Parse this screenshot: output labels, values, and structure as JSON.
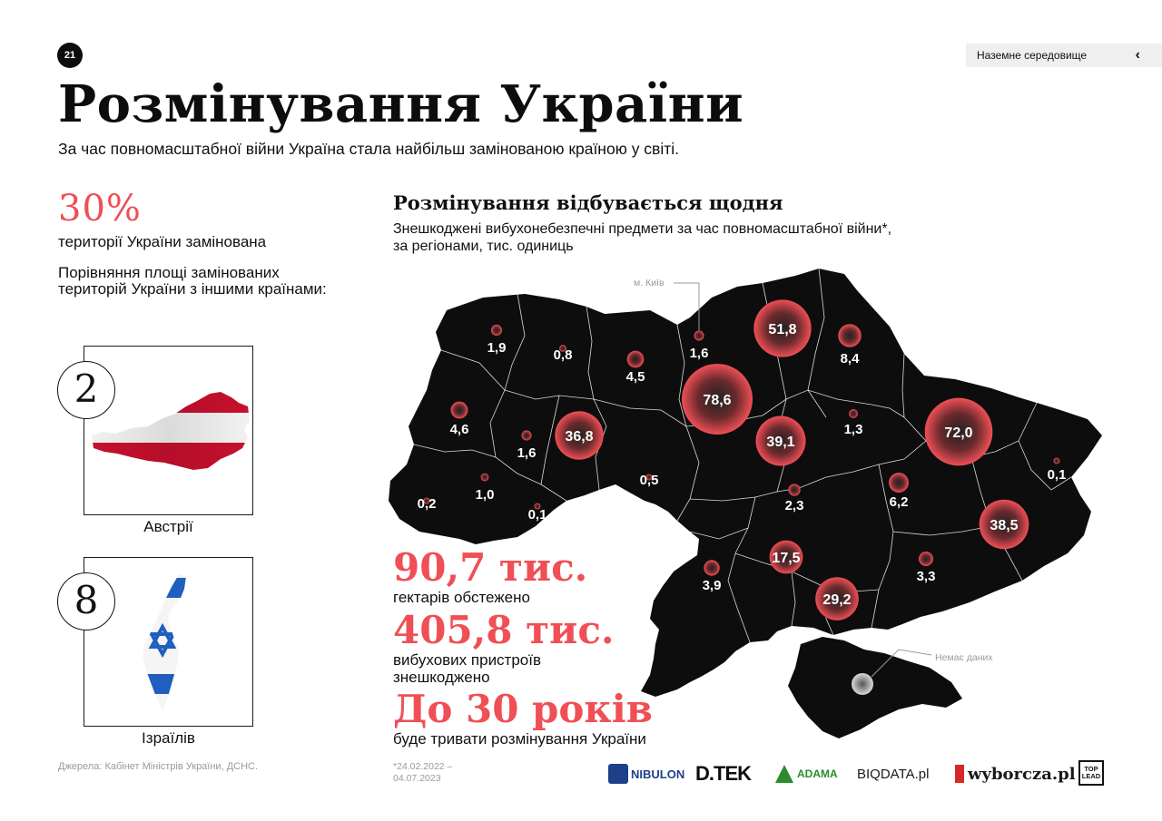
{
  "page": {
    "number": "21",
    "section_tab": "Наземне середовище",
    "title": "Розмінування України",
    "subtitle": "За час повномасштабної війни Україна стала найбільш замінованою країною у світі."
  },
  "left": {
    "big_pct": "30%",
    "pct_label": "території України замінована",
    "compare_label": "Порівняння площі замінованих територій України з іншими країнами:",
    "countries": [
      {
        "rank": "2",
        "name": "Австрії"
      },
      {
        "rank": "8",
        "name": "Ізраїлів"
      }
    ]
  },
  "chart": {
    "title": "Розмінування відбувається щодня",
    "subtitle_line1": "Знешкоджені вибухонебезпечні предмети за час повномасштабної війни*,",
    "subtitle_line2": "за регіонами, тис. одиниць",
    "kyiv_label": "м. Київ",
    "no_data_label": "Немає даних"
  },
  "chart_data": {
    "type": "bubble-map",
    "title": "Розмінування відбувається щодня",
    "unit": "тис. одиниць",
    "values": [
      "1,9",
      "0,8",
      "1,6",
      "51,8",
      "8,4",
      "4,5",
      "78,6",
      "4,6",
      "1,6",
      "36,8",
      "39,1",
      "1,3",
      "72,0",
      "0,1",
      "0,2",
      "1,0",
      "0,1",
      "0,5",
      "2,3",
      "6,2",
      "38,5",
      "17,5",
      "3,9",
      "3,3",
      "29,2"
    ]
  },
  "stats": [
    {
      "value": "90,7 тис.",
      "label": "гектарів обстежено"
    },
    {
      "value": "405,8 тис.",
      "label_line1": "вибухових пристроїв",
      "label_line2": "знешкоджено"
    },
    {
      "value": "До 30 років",
      "label": "буде тривати розмінування України"
    }
  ],
  "footer": {
    "sources": "Джерела: Кабінет Міністрів України, ДСНС.",
    "footnote_line1": "*24.02.2022 –",
    "footnote_line2": "04.07.2023",
    "logos": {
      "nibulon": "NIBULON",
      "dtek": "D.TEK",
      "adama": "ADAMA",
      "biqdata": "BIQDATA.pl",
      "wyborcza": "wyborcza.pl",
      "toplead_1": "TOP",
      "toplead_2": "LEAD"
    }
  },
  "colors": {
    "accent_red": "#ef4f55",
    "map_black": "#0d0d0d",
    "austria_red": "#c8102e",
    "israel_blue": "#1f5fbf"
  }
}
